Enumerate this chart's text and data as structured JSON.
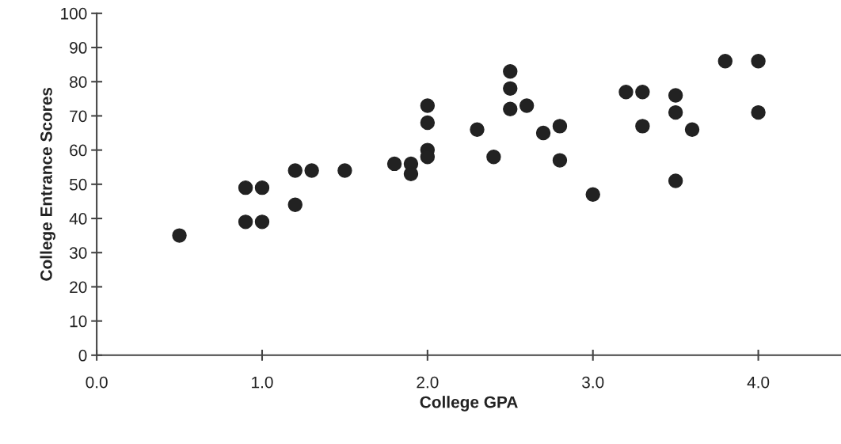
{
  "chart_data": {
    "type": "scatter",
    "xlabel": "College GPA",
    "ylabel": "College Entrance Scores",
    "x": [
      0.5,
      0.9,
      0.9,
      1.0,
      1.0,
      1.2,
      1.2,
      1.3,
      1.5,
      1.8,
      1.9,
      1.9,
      2.0,
      2.0,
      2.0,
      2.0,
      2.3,
      2.4,
      2.5,
      2.5,
      2.5,
      2.6,
      2.7,
      2.8,
      2.8,
      3.0,
      3.2,
      3.3,
      3.3,
      3.5,
      3.5,
      3.5,
      3.6,
      3.8,
      4.0,
      4.0
    ],
    "values": [
      35,
      49,
      39,
      49,
      39,
      44,
      54,
      54,
      54,
      56,
      56,
      53,
      73,
      68,
      60,
      58,
      66,
      58,
      83,
      78,
      72,
      73,
      65,
      67,
      57,
      47,
      77,
      77,
      67,
      76,
      71,
      51,
      66,
      86,
      86,
      71
    ],
    "color": "#222222",
    "marker": "circle",
    "xlim": [
      0,
      4.5
    ],
    "ylim": [
      0,
      100
    ],
    "xticks": [
      {
        "value": 0,
        "label": "0.0"
      },
      {
        "value": 1,
        "label": "1.0"
      },
      {
        "value": 2,
        "label": "2.0"
      },
      {
        "value": 3,
        "label": "3.0"
      },
      {
        "value": 4,
        "label": "4.0"
      }
    ],
    "yticks": [
      0,
      10,
      20,
      30,
      40,
      50,
      60,
      70,
      80,
      90,
      100
    ],
    "grid": false,
    "legend": false
  }
}
